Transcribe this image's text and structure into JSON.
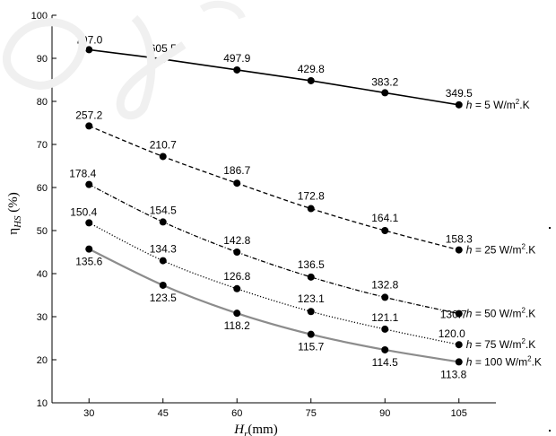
{
  "chart_data": {
    "type": "line",
    "x": [
      30,
      45,
      60,
      75,
      90,
      105
    ],
    "xlim": [
      22.5,
      112.5
    ],
    "ylim": [
      10,
      100
    ],
    "xticks": [
      30,
      45,
      60,
      75,
      90,
      105
    ],
    "yticks": [
      10,
      20,
      30,
      40,
      50,
      60,
      70,
      80,
      90,
      100
    ],
    "xlabel_main": "H",
    "xlabel_sub": "r",
    "xlabel_unit": "(mm)",
    "ylabel_main": "η",
    "ylabel_sub": "HS",
    "ylabel_unit": "(%)",
    "grid": false,
    "series": [
      {
        "name_prefix": "h = ",
        "name_value": "5 W/m",
        "name_sup": "2",
        "name_suffix": ".K",
        "style": "solid",
        "color": "#000000",
        "values": [
          92.0,
          89.8,
          87.3,
          84.8,
          82.0,
          79.2
        ],
        "labels": [
          "797.0",
          "605.5",
          "497.9",
          "429.8",
          "383.2",
          "349.5"
        ]
      },
      {
        "name_prefix": "h = ",
        "name_value": "25 W/m",
        "name_sup": "2",
        "name_suffix": ".K",
        "style": "dashed",
        "color": "#000000",
        "values": [
          74.3,
          67.2,
          61.0,
          55.1,
          50.0,
          45.5
        ],
        "labels": [
          "257.2",
          "210.7",
          "186.7",
          "172.8",
          "164.1",
          "158.3"
        ]
      },
      {
        "name_prefix": "h = ",
        "name_value": "50 W/m",
        "name_sup": "2",
        "name_suffix": ".K",
        "style": "dashdot",
        "color": "#000000",
        "values": [
          60.7,
          52.0,
          45.0,
          39.2,
          34.5,
          30.7
        ],
        "labels": [
          "178.4",
          "154.5",
          "142.8",
          "136.5",
          "132.8",
          "130.7"
        ]
      },
      {
        "name_prefix": "h = ",
        "name_value": "75 W/m",
        "name_sup": "2",
        "name_suffix": ".K",
        "style": "dotted",
        "color": "#000000",
        "values": [
          51.8,
          43.0,
          36.5,
          31.2,
          27.1,
          23.5
        ],
        "labels": [
          "150.4",
          "134.3",
          "126.8",
          "123.1",
          "121.1",
          "120.0"
        ]
      },
      {
        "name_prefix": "h = ",
        "name_value": "100 W/m",
        "name_sup": "2",
        "name_suffix": ".K",
        "style": "solid-gray",
        "color": "#8c8c8c",
        "values": [
          45.7,
          37.3,
          30.8,
          25.9,
          22.3,
          19.5
        ],
        "labels": [
          "135.6",
          "123.5",
          "118.2",
          "115.7",
          "114.5",
          "113.8"
        ]
      }
    ]
  }
}
